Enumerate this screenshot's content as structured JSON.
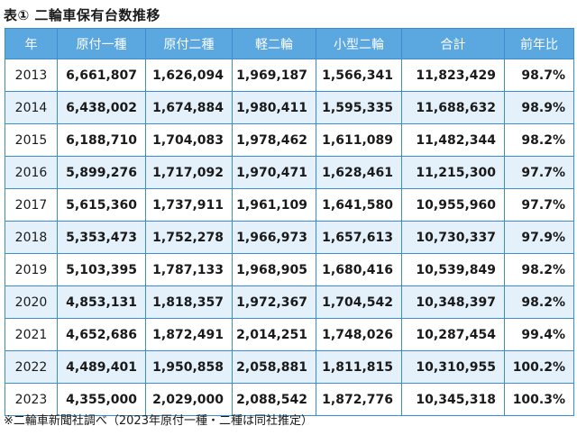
{
  "caption": "表① 二輪車保有台数推移",
  "table": {
    "headers": [
      "年",
      "原付一種",
      "原付二種",
      "軽二輪",
      "小型二輪",
      "合計",
      "前年比"
    ],
    "rows": [
      [
        "2013",
        "6,661,807",
        "1,626,094",
        "1,969,187",
        "1,566,341",
        "11,823,429",
        "98.7%"
      ],
      [
        "2014",
        "6,438,002",
        "1,674,884",
        "1,980,411",
        "1,595,335",
        "11,688,632",
        "98.9%"
      ],
      [
        "2015",
        "6,188,710",
        "1,704,083",
        "1,978,462",
        "1,611,089",
        "11,482,344",
        "98.2%"
      ],
      [
        "2016",
        "5,899,276",
        "1,717,092",
        "1,970,471",
        "1,628,461",
        "11,215,300",
        "97.7%"
      ],
      [
        "2017",
        "5,615,360",
        "1,737,911",
        "1,961,109",
        "1,641,580",
        "10,955,960",
        "97.7%"
      ],
      [
        "2018",
        "5,353,473",
        "1,752,278",
        "1,966,973",
        "1,657,613",
        "10,730,337",
        "97.9%"
      ],
      [
        "2019",
        "5,103,395",
        "1,787,133",
        "1,968,905",
        "1,680,416",
        "10,539,849",
        "98.2%"
      ],
      [
        "2020",
        "4,853,131",
        "1,818,357",
        "1,972,367",
        "1,704,542",
        "10,348,397",
        "98.2%"
      ],
      [
        "2021",
        "4,652,686",
        "1,872,491",
        "2,014,251",
        "1,748,026",
        "10,287,454",
        "99.4%"
      ],
      [
        "2022",
        "4,489,401",
        "1,950,858",
        "2,058,881",
        "1,811,815",
        "10,310,955",
        "100.2%"
      ],
      [
        "2023",
        "4,355,000",
        "2,029,000",
        "2,088,542",
        "1,872,776",
        "10,345,318",
        "100.3%"
      ]
    ]
  },
  "note": "※二輪車新聞社調べ（2023年原付一種・二種は同社推定）",
  "colors": {
    "header_bg": "#5ba7e0",
    "stripe_bg": "#e4f1fb",
    "border": "#3a8ed0"
  }
}
